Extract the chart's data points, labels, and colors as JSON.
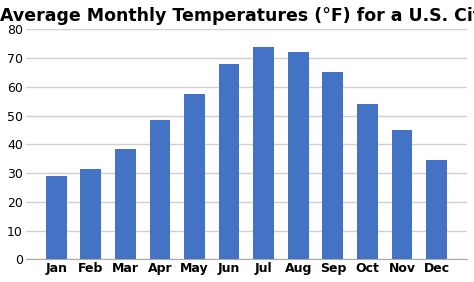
{
  "title": "Average Monthly Temperatures (°F) for a U.S. City",
  "months": [
    "Jan",
    "Feb",
    "Mar",
    "Apr",
    "May",
    "Jun",
    "Jul",
    "Aug",
    "Sep",
    "Oct",
    "Nov",
    "Dec"
  ],
  "values": [
    29,
    31.5,
    38.5,
    48.5,
    57.5,
    68,
    74,
    72,
    65,
    54,
    45,
    34.5
  ],
  "bar_color": "#4472C4",
  "ylim": [
    0,
    80
  ],
  "yticks": [
    0,
    10,
    20,
    30,
    40,
    50,
    60,
    70,
    80
  ],
  "background_color": "#ffffff",
  "title_fontsize": 12.5,
  "tick_fontsize": 9,
  "grid_color": "#d0d0d0",
  "grid_linewidth": 1.0,
  "bar_width": 0.6
}
